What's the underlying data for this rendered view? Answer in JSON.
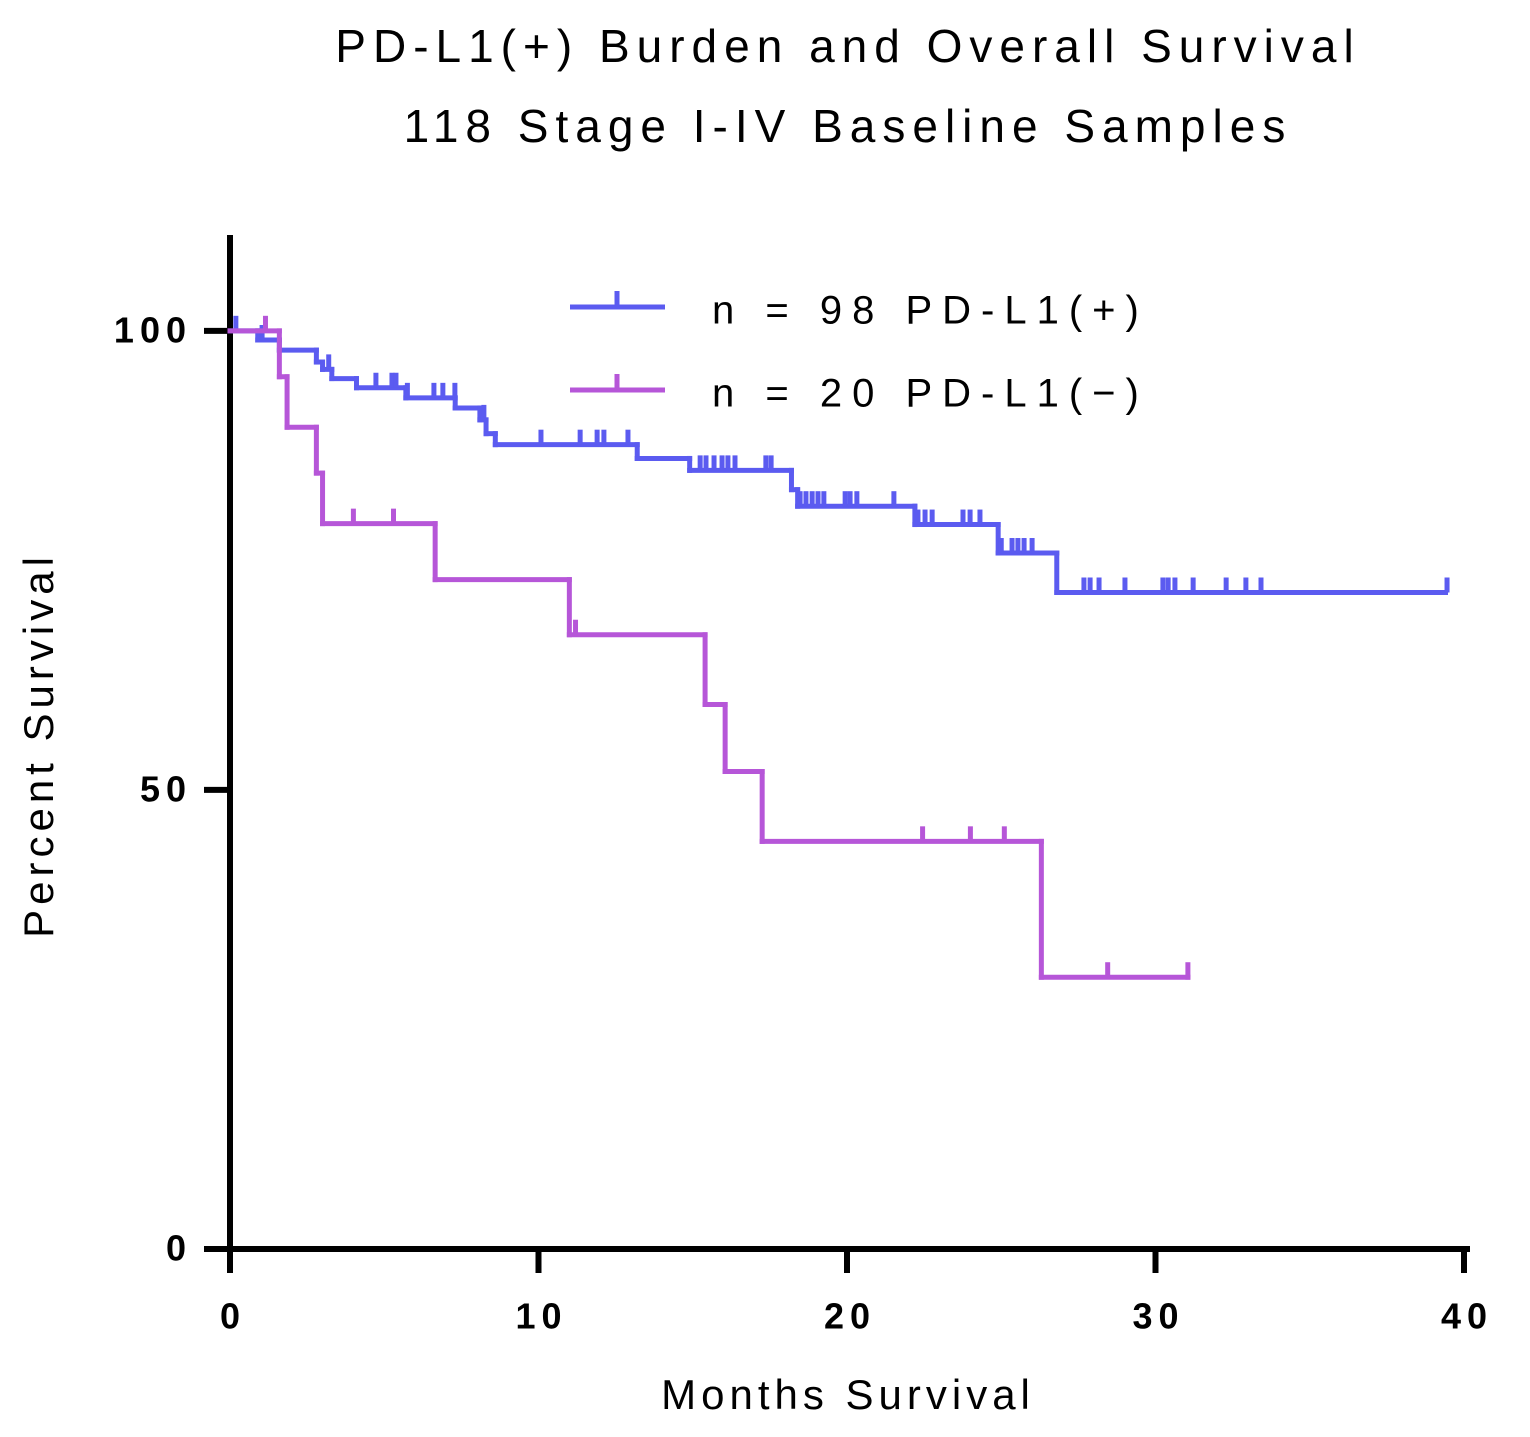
{
  "chart_data": {
    "type": "survival",
    "title": "PD-L1(+) Burden and Overall Survival",
    "subtitle": "118 Stage I-IV Baseline Samples",
    "x_label": "Months Survival",
    "y_label": "Percent Survival",
    "xlim": [
      0,
      40
    ],
    "ylim": [
      0,
      110
    ],
    "xticks": [
      0,
      10,
      20,
      30,
      40
    ],
    "yticks": [
      0,
      50,
      100
    ],
    "series": [
      {
        "name": "n = 98 PD-L1(+)",
        "color": "#5b5bf0",
        "x": [
          0,
          0.9,
          1.6,
          2.8,
          3.0,
          3.3,
          4.1,
          5.7,
          7.3,
          8.1,
          8.3,
          8.6,
          13.2,
          14.9,
          18.2,
          18.4,
          22.2,
          24.9,
          26.8,
          39.4
        ],
        "values": [
          100,
          99,
          97.9,
          96.6,
          95.8,
          94.8,
          93.8,
          92.7,
          91.6,
          90.3,
          88.8,
          87.6,
          86.1,
          84.8,
          82.7,
          80.9,
          78.9,
          75.8,
          71.5,
          71.5
        ],
        "censor_x": [
          0.19,
          1.04,
          3.2,
          4.73,
          5.25,
          5.38,
          5.75,
          6.61,
          6.9,
          7.29,
          8.23,
          10.08,
          11.35,
          11.9,
          12.12,
          12.9,
          15.24,
          15.43,
          15.69,
          15.95,
          16.14,
          16.37,
          17.37,
          17.54,
          18.48,
          18.67,
          18.87,
          19.06,
          19.25,
          19.94,
          20.1,
          20.32,
          21.52,
          22.3,
          22.53,
          22.76,
          23.76,
          23.99,
          24.31,
          25.0,
          25.35,
          25.54,
          25.74,
          26.0,
          27.68,
          27.88,
          28.17,
          29.01,
          30.24,
          30.41,
          30.63,
          31.22,
          32.29,
          32.93,
          33.42,
          39.45
        ],
        "censor_values": [
          100,
          99,
          95.8,
          93.8,
          93.8,
          93.8,
          92.7,
          92.7,
          92.7,
          92.7,
          90.3,
          87.6,
          87.6,
          87.6,
          87.6,
          87.6,
          84.8,
          84.8,
          84.8,
          84.8,
          84.8,
          84.8,
          84.8,
          84.8,
          80.9,
          80.9,
          80.9,
          80.9,
          80.9,
          80.9,
          80.9,
          80.9,
          80.9,
          78.9,
          78.9,
          78.9,
          78.9,
          78.9,
          78.9,
          75.8,
          75.8,
          75.8,
          75.8,
          75.8,
          71.5,
          71.5,
          71.5,
          71.5,
          71.5,
          71.5,
          71.5,
          71.5,
          71.5,
          71.5,
          71.5,
          71.5
        ]
      },
      {
        "name": "n = 20 PD-L1(−)",
        "color": "#b656d8",
        "x": [
          0,
          1.6,
          1.85,
          2.8,
          3.0,
          6.65,
          11.0,
          15.4,
          16.05,
          17.25,
          26.3,
          31.05
        ],
        "values": [
          100,
          95,
          89.5,
          84.5,
          79,
          72.9,
          66.9,
          59.3,
          52,
          44.4,
          29.6,
          29.6
        ],
        "censor_x": [
          1.15,
          4.0,
          5.3,
          11.2,
          22.45,
          24.0,
          25.1,
          28.45,
          31.05
        ],
        "censor_values": [
          100,
          79,
          79,
          66.9,
          44.4,
          44.4,
          44.4,
          29.6,
          29.6
        ]
      }
    ]
  }
}
